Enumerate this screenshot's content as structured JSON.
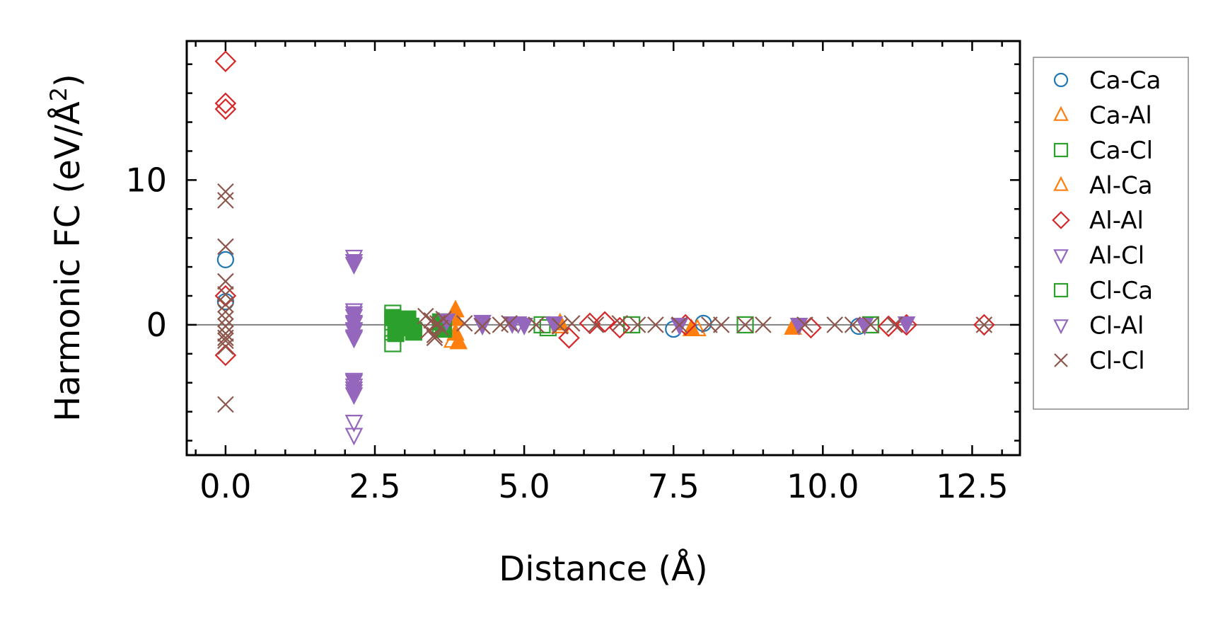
{
  "chart_data": {
    "type": "scatter",
    "title": "",
    "xlabel": "Distance (Å)",
    "ylabel_main": "Harmonic FC (eV/Å",
    "ylabel_sup": "2",
    "ylabel_close": ")",
    "xlim": [
      -0.65,
      13.3
    ],
    "ylim": [
      -9.0,
      19.6
    ],
    "x_ticks": [
      0.0,
      2.5,
      5.0,
      7.5,
      10.0,
      12.5
    ],
    "x_tick_labels": [
      "0.0",
      "2.5",
      "5.0",
      "7.5",
      "10.0",
      "12.5"
    ],
    "x_minor_step": 0.5,
    "y_ticks": [
      0,
      10
    ],
    "y_tick_labels": [
      "0",
      "10"
    ],
    "y_minor_step": 2,
    "zero_line": true,
    "legend_position": "outside-right",
    "series": [
      {
        "name": "Ca-Ca",
        "marker": "circle",
        "color": "#1f77b4",
        "filled": false,
        "x": [
          0.0,
          0.0,
          7.5,
          8.0,
          10.6
        ],
        "y": [
          4.5,
          1.6,
          -0.3,
          0.1,
          -0.1
        ]
      },
      {
        "name": "Ca-Al",
        "marker": "triangle-up",
        "color": "#ff7f0e",
        "filled": true,
        "x": [
          3.85,
          3.85,
          3.85,
          3.9,
          5.6,
          7.8,
          9.5
        ],
        "y": [
          1.0,
          0.4,
          -0.6,
          -1.2,
          0.1,
          -0.3,
          -0.2
        ]
      },
      {
        "name": "Ca-Cl",
        "marker": "square",
        "color": "#2ca02c",
        "filled": false,
        "x": [
          2.8,
          2.8,
          2.8,
          2.8,
          3.05,
          3.1,
          3.15,
          3.6,
          5.3,
          5.4,
          6.8,
          8.7,
          10.8
        ],
        "y": [
          0.8,
          0.2,
          -0.5,
          -1.3,
          0.3,
          -0.2,
          -0.4,
          0.0,
          0.0,
          -0.2,
          0.0,
          0.0,
          0.0
        ]
      },
      {
        "name": "Al-Ca",
        "marker": "triangle-up",
        "color": "#ff7f0e",
        "filled": false,
        "x": [
          3.8,
          3.8,
          3.8,
          5.6,
          7.9
        ],
        "y": [
          0.6,
          -0.3,
          -1.1,
          -0.1,
          -0.3
        ]
      },
      {
        "name": "Al-Al",
        "marker": "diamond",
        "color": "#d62728",
        "filled": false,
        "x": [
          0.0,
          0.0,
          0.0,
          0.0,
          0.0,
          5.75,
          6.1,
          6.35,
          6.6,
          7.7,
          9.8,
          11.1,
          11.4,
          12.7
        ],
        "y": [
          18.2,
          15.3,
          14.9,
          2.0,
          -2.1,
          -0.9,
          0.1,
          0.2,
          -0.2,
          0.0,
          -0.2,
          -0.1,
          0.0,
          0.0
        ]
      },
      {
        "name": "Al-Cl",
        "marker": "triangle-down",
        "color": "#9467bd",
        "filled": false,
        "x": [
          2.15,
          2.15,
          2.15,
          2.15,
          2.15,
          2.15,
          2.15,
          2.15,
          2.15,
          2.15,
          2.15,
          2.15,
          4.3,
          4.9
        ],
        "y": [
          4.7,
          4.2,
          1.0,
          0.6,
          0.1,
          -0.4,
          -0.8,
          -3.8,
          -4.2,
          -4.6,
          -6.7,
          -7.6,
          0.0,
          0.1
        ]
      },
      {
        "name": "Cl-Ca",
        "marker": "square",
        "color": "#2ca02c",
        "filled": true,
        "x": [
          2.8,
          2.85,
          3.05,
          3.1,
          3.15,
          3.6,
          3.65
        ],
        "y": [
          0.5,
          -0.6,
          0.4,
          -0.1,
          -0.5,
          0.2,
          -0.3
        ]
      },
      {
        "name": "Cl-Al",
        "marker": "triangle-down",
        "color": "#9467bd",
        "filled": true,
        "x": [
          2.15,
          2.15,
          2.15,
          2.15,
          2.15,
          2.15,
          2.15,
          2.15,
          3.7,
          4.3,
          4.8,
          5.0,
          5.5,
          7.6,
          9.6,
          10.7,
          11.4
        ],
        "y": [
          4.4,
          0.8,
          0.2,
          -0.3,
          -0.9,
          -3.9,
          -4.4,
          -4.8,
          0.3,
          0.2,
          0.1,
          0.0,
          0.1,
          0.0,
          0.0,
          0.0,
          0.1
        ]
      },
      {
        "name": "Cl-Cl",
        "marker": "x",
        "color": "#8c564b",
        "filled": false,
        "x": [
          0.0,
          0.0,
          0.0,
          0.0,
          0.0,
          0.0,
          0.0,
          0.0,
          0.0,
          0.0,
          0.0,
          0.0,
          0.0,
          0.0,
          3.35,
          3.4,
          3.45,
          3.5,
          3.55,
          3.6,
          3.65,
          3.5,
          4.0,
          4.3,
          4.6,
          4.75,
          5.2,
          5.6,
          5.8,
          6.2,
          6.6,
          6.9,
          7.2,
          7.6,
          8.1,
          8.3,
          8.7,
          9.0,
          9.7,
          10.2,
          10.5,
          10.8,
          11.2,
          12.7
        ],
        "y": [
          9.2,
          8.6,
          5.4,
          3.0,
          2.1,
          1.4,
          0.9,
          0.4,
          -0.1,
          -0.6,
          -0.9,
          -1.1,
          -1.5,
          -5.5,
          0.6,
          -0.4,
          0.3,
          -0.7,
          0.1,
          -0.2,
          0.4,
          -0.9,
          0.1,
          -0.1,
          0.0,
          0.1,
          0.0,
          -0.1,
          0.1,
          0.0,
          0.1,
          0.0,
          0.0,
          0.0,
          0.0,
          0.0,
          0.0,
          0.0,
          0.0,
          0.0,
          0.0,
          0.0,
          0.0,
          0.0
        ]
      }
    ],
    "legend_entries": [
      "Ca-Ca",
      "Ca-Al",
      "Ca-Cl",
      "Al-Ca",
      "Al-Al",
      "Al-Cl",
      "Cl-Ca",
      "Cl-Al",
      "Cl-Cl"
    ]
  }
}
